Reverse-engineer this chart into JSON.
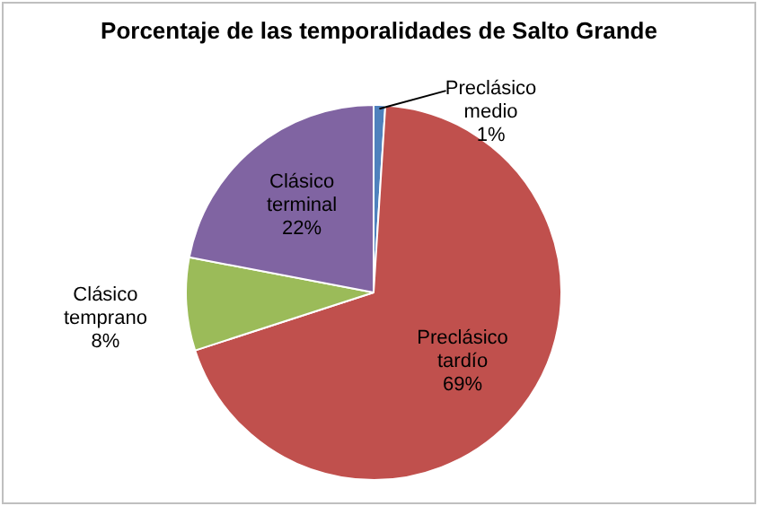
{
  "chart_data": {
    "type": "pie",
    "title": "Porcentaje de las temporalidades de Salto Grande",
    "categories": [
      "Preclásico medio",
      "Preclásico tardío",
      "Clásico temprano",
      "Clásico terminal"
    ],
    "values": [
      1,
      69,
      8,
      22
    ],
    "colors": [
      "#4f81bd",
      "#c0504d",
      "#9bbb59",
      "#8064a2"
    ],
    "value_labels": [
      "1%",
      "69%",
      "8%",
      "22%"
    ]
  }
}
